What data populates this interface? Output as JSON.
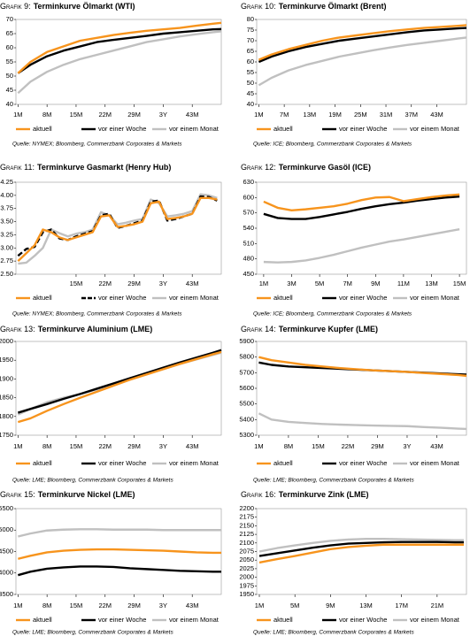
{
  "chart_data": [
    {
      "type": "line",
      "figure_label": "Grafik 9:",
      "title": "Terminkurve Ölmarkt (WTI)",
      "source": "Quelle: NYMEX; Bloomberg, Commerzbank Corporates & Markets",
      "x": [
        1,
        4,
        8,
        12,
        16,
        20,
        24,
        28,
        32,
        36,
        40,
        44,
        48,
        50
      ],
      "xlim": [
        0.5,
        50
      ],
      "xticks": [
        {
          "value": 1,
          "label": "1M"
        },
        {
          "value": 8,
          "label": "8M"
        },
        {
          "value": 15,
          "label": "15M"
        },
        {
          "value": 22,
          "label": "22M"
        },
        {
          "value": 29,
          "label": "29M"
        },
        {
          "value": 36,
          "label": "3Y"
        },
        {
          "value": 43,
          "label": "43M"
        }
      ],
      "ylim": [
        40,
        70
      ],
      "yticks": [
        40,
        45,
        50,
        55,
        60,
        65,
        70
      ],
      "series": [
        {
          "name": "aktuell",
          "color": "#f7941d",
          "values": [
            51,
            55,
            58.5,
            60.5,
            62.5,
            63.5,
            64.5,
            65.3,
            66,
            66.5,
            67,
            67.8,
            68.5,
            68.8
          ]
        },
        {
          "name": "vor einer Woche",
          "color": "#000000",
          "values": [
            51,
            54,
            57,
            59,
            60.5,
            62,
            62.8,
            63.5,
            64.2,
            65,
            65.5,
            66,
            66.5,
            66.6
          ]
        },
        {
          "name": "vor einem Monat",
          "color": "#c0c0c0",
          "values": [
            44,
            48,
            51.5,
            54,
            56,
            57.5,
            59,
            60.5,
            62,
            63,
            64,
            64.8,
            65.5,
            65.8
          ]
        }
      ]
    },
    {
      "type": "line",
      "figure_label": "Grafik 10:",
      "title": "Terminkurve Ölmarkt (Brent)",
      "source": "Quelle: ICE; Bloomberg, Commerzbank Corporates & Markets",
      "x": [
        1,
        4,
        8,
        12,
        16,
        20,
        24,
        28,
        32,
        36,
        40,
        44,
        48,
        50
      ],
      "xlim": [
        0.5,
        50
      ],
      "xticks": [
        {
          "value": 1,
          "label": "1M"
        },
        {
          "value": 7,
          "label": "7M"
        },
        {
          "value": 13,
          "label": "13M"
        },
        {
          "value": 19,
          "label": "19M"
        },
        {
          "value": 25,
          "label": "25M"
        },
        {
          "value": 31,
          "label": "31M"
        },
        {
          "value": 37,
          "label": "37M"
        },
        {
          "value": 43,
          "label": "43M"
        }
      ],
      "ylim": [
        40,
        80
      ],
      "yticks": [
        40,
        45,
        50,
        55,
        60,
        65,
        70,
        75,
        80
      ],
      "series": [
        {
          "name": "aktuell",
          "color": "#f7941d",
          "values": [
            61,
            63.5,
            66,
            68,
            70,
            71.5,
            72.5,
            73.5,
            74.5,
            75.3,
            76,
            76.5,
            77,
            77.3
          ]
        },
        {
          "name": "vor einer Woche",
          "color": "#000000",
          "values": [
            60,
            62.5,
            65,
            67,
            68.5,
            70,
            71,
            72,
            73,
            74,
            74.8,
            75.3,
            75.8,
            76
          ]
        },
        {
          "name": "vor einem Monat",
          "color": "#c0c0c0",
          "values": [
            49,
            52.5,
            56,
            58.5,
            60.5,
            62.5,
            64,
            65.5,
            66.8,
            68,
            69,
            70,
            71,
            71.5
          ]
        }
      ]
    },
    {
      "type": "line",
      "figure_label": "Grafik 11:",
      "title": "Terminkurve Gasmarkt (Henry Hub)",
      "source": "Quelle: NYMEX; Bloomberg, Commerzbank Corporates & Markets",
      "x": [
        1,
        3,
        5,
        7,
        9,
        11,
        13,
        15,
        17,
        19,
        21,
        23,
        25,
        27,
        29,
        31,
        33,
        35,
        37,
        39,
        41,
        43,
        45,
        47,
        49
      ],
      "xlim": [
        0.5,
        50
      ],
      "xticks": [
        {
          "value": 15,
          "label": "15M"
        },
        {
          "value": 22,
          "label": "22M"
        },
        {
          "value": 29,
          "label": "29M"
        },
        {
          "value": 36,
          "label": "3Y"
        },
        {
          "value": 43,
          "label": "43M"
        }
      ],
      "ylim": [
        2.5,
        4.25
      ],
      "yticks": [
        {
          "value": 2.5,
          "label": "2.50"
        },
        2.75,
        {
          "value": 3,
          "label": "3.00"
        },
        3.25,
        {
          "value": 3.5,
          "label": "3.50"
        },
        3.75,
        {
          "value": 4,
          "label": "4.00"
        },
        4.25
      ],
      "series": [
        {
          "name": "aktuell",
          "color": "#f7941d",
          "values": [
            2.75,
            2.9,
            3.05,
            3.35,
            3.3,
            3.2,
            3.15,
            3.2,
            3.25,
            3.3,
            3.6,
            3.62,
            3.4,
            3.42,
            3.45,
            3.5,
            3.85,
            3.88,
            3.55,
            3.57,
            3.6,
            3.65,
            3.95,
            3.95,
            3.92
          ]
        },
        {
          "name": "vor einer Woche",
          "color": "#000000",
          "dashed": true,
          "values": [
            2.85,
            2.98,
            3.02,
            3.3,
            3.35,
            3.18,
            3.15,
            3.22,
            3.27,
            3.32,
            3.62,
            3.65,
            3.38,
            3.42,
            3.47,
            3.52,
            3.88,
            3.9,
            3.52,
            3.55,
            3.6,
            3.65,
            3.98,
            3.97,
            3.9
          ]
        },
        {
          "name": "vor einem Monat",
          "color": "#c0c0c0",
          "values": [
            2.7,
            2.72,
            2.85,
            3.0,
            3.35,
            3.28,
            3.22,
            3.27,
            3.3,
            3.35,
            3.68,
            3.62,
            3.45,
            3.48,
            3.52,
            3.55,
            3.92,
            3.85,
            3.6,
            3.62,
            3.65,
            3.7,
            4.02,
            4.0,
            3.95
          ]
        }
      ]
    },
    {
      "type": "line",
      "figure_label": "Grafik 12:",
      "title": "Terminkurve Gasöl (ICE)",
      "source": "Quelle: ICE; Bloomberg, Commerzbank Corporates & Markets",
      "x": [
        1,
        2,
        3,
        4,
        5,
        6,
        7,
        8,
        9,
        10,
        11,
        12,
        13,
        14,
        15
      ],
      "xlim": [
        0.5,
        15.5
      ],
      "xticks": [
        {
          "value": 1,
          "label": "1M"
        },
        {
          "value": 3,
          "label": "3M"
        },
        {
          "value": 5,
          "label": "5M"
        },
        {
          "value": 7,
          "label": "7M"
        },
        {
          "value": 9,
          "label": "9M"
        },
        {
          "value": 11,
          "label": "11M"
        },
        {
          "value": 13,
          "label": "13M"
        },
        {
          "value": 15,
          "label": "15M"
        }
      ],
      "ylim": [
        450,
        630
      ],
      "yticks": [
        450,
        480,
        510,
        540,
        570,
        600,
        630
      ],
      "series": [
        {
          "name": "aktuell",
          "color": "#f7941d",
          "values": [
            592,
            580,
            575,
            577,
            580,
            583,
            588,
            595,
            600,
            601,
            593,
            597,
            601,
            604,
            606
          ]
        },
        {
          "name": "vor einer Woche",
          "color": "#000000",
          "values": [
            568,
            560,
            558,
            558,
            562,
            567,
            572,
            578,
            583,
            587,
            590,
            594,
            597,
            600,
            602
          ]
        },
        {
          "name": "vor einem Monat",
          "color": "#c0c0c0",
          "values": [
            474,
            473,
            474,
            477,
            482,
            488,
            495,
            502,
            508,
            514,
            518,
            523,
            528,
            533,
            538
          ]
        }
      ]
    },
    {
      "type": "line",
      "figure_label": "Grafik 13:",
      "title": "Terminkurve Aluminium (LME)",
      "source": "Quelle: LME; Bloomberg, Commerzbank Corporates & Markets",
      "x": [
        1,
        4,
        8,
        12,
        16,
        20,
        24,
        28,
        32,
        36,
        40,
        44,
        48,
        50
      ],
      "xlim": [
        0.5,
        50
      ],
      "xticks": [
        {
          "value": 1,
          "label": "1M"
        },
        {
          "value": 8,
          "label": "8M"
        },
        {
          "value": 15,
          "label": "15M"
        },
        {
          "value": 22,
          "label": "22M"
        },
        {
          "value": 29,
          "label": "29M"
        },
        {
          "value": 36,
          "label": "3Y"
        },
        {
          "value": 43,
          "label": "43M"
        }
      ],
      "ylim": [
        1750,
        2000
      ],
      "yticks": [
        1750,
        1800,
        1850,
        1900,
        1950,
        2000
      ],
      "series": [
        {
          "name": "aktuell",
          "color": "#f7941d",
          "values": [
            1785,
            1795,
            1815,
            1833,
            1850,
            1866,
            1882,
            1898,
            1912,
            1926,
            1940,
            1953,
            1966,
            1972
          ]
        },
        {
          "name": "vor einer Woche",
          "color": "#000000",
          "values": [
            1810,
            1820,
            1833,
            1847,
            1860,
            1874,
            1888,
            1902,
            1916,
            1930,
            1944,
            1957,
            1970,
            1977
          ]
        },
        {
          "name": "vor einem Monat",
          "color": "#c0c0c0",
          "values": [
            1805,
            1820,
            1838,
            1850,
            1860,
            1872,
            1885,
            1900,
            1913,
            1926,
            1940,
            1952,
            1964,
            1970
          ]
        }
      ]
    },
    {
      "type": "line",
      "figure_label": "Grafik 14:",
      "title": "Terminkurve Kupfer (LME)",
      "source": "Quelle: LME; Bloomberg, Commerzbank Corporates & Markets",
      "x": [
        1,
        4,
        8,
        12,
        16,
        20,
        24,
        28,
        32,
        36,
        40,
        44,
        48,
        50
      ],
      "xlim": [
        0.5,
        50
      ],
      "xticks": [
        {
          "value": 1,
          "label": "1M"
        },
        {
          "value": 8,
          "label": "8M"
        },
        {
          "value": 15,
          "label": "15M"
        },
        {
          "value": 22,
          "label": "22M"
        },
        {
          "value": 29,
          "label": "29M"
        },
        {
          "value": 36,
          "label": "3Y"
        },
        {
          "value": 43,
          "label": "43M"
        }
      ],
      "ylim": [
        5300,
        5900
      ],
      "yticks": [
        5300,
        5400,
        5500,
        5600,
        5700,
        5800,
        5900
      ],
      "series": [
        {
          "name": "aktuell",
          "color": "#f7941d",
          "values": [
            5800,
            5780,
            5765,
            5750,
            5740,
            5730,
            5722,
            5715,
            5710,
            5705,
            5698,
            5692,
            5685,
            5680
          ]
        },
        {
          "name": "vor einer Woche",
          "color": "#000000",
          "values": [
            5765,
            5750,
            5740,
            5735,
            5730,
            5725,
            5720,
            5715,
            5710,
            5705,
            5700,
            5695,
            5690,
            5688
          ]
        },
        {
          "name": "vor einem Monat",
          "color": "#c0c0c0",
          "values": [
            5440,
            5400,
            5385,
            5378,
            5372,
            5368,
            5365,
            5362,
            5360,
            5358,
            5352,
            5348,
            5342,
            5340
          ]
        }
      ]
    },
    {
      "type": "line",
      "figure_label": "Grafik 15:",
      "title": "Terminkurve Nickel (LME)",
      "source": "Quelle: LME; Bloomberg, Commerzbank Corporates & Markets",
      "x": [
        1,
        4,
        8,
        12,
        16,
        20,
        24,
        28,
        32,
        36,
        40,
        44,
        48,
        50
      ],
      "xlim": [
        0.5,
        50
      ],
      "xticks": [
        {
          "value": 1,
          "label": "1M"
        },
        {
          "value": 8,
          "label": "8M"
        },
        {
          "value": 15,
          "label": "15M"
        },
        {
          "value": 22,
          "label": "22M"
        },
        {
          "value": 29,
          "label": "29M"
        },
        {
          "value": 36,
          "label": "3Y"
        },
        {
          "value": 43,
          "label": "43M"
        }
      ],
      "ylim": [
        13500,
        15500
      ],
      "yticks": [
        13500,
        14000,
        14500,
        15000,
        15500
      ],
      "series": [
        {
          "name": "aktuell",
          "color": "#f7941d",
          "values": [
            14330,
            14400,
            14480,
            14520,
            14540,
            14550,
            14550,
            14540,
            14530,
            14520,
            14500,
            14480,
            14470,
            14470
          ]
        },
        {
          "name": "vor einer Woche",
          "color": "#000000",
          "values": [
            13950,
            14030,
            14100,
            14130,
            14150,
            14150,
            14140,
            14110,
            14090,
            14070,
            14050,
            14040,
            14030,
            14030
          ]
        },
        {
          "name": "vor einem Monat",
          "color": "#c0c0c0",
          "values": [
            14850,
            14920,
            14990,
            15010,
            15020,
            15020,
            15010,
            15010,
            15010,
            15000,
            15000,
            15000,
            15000,
            15000
          ]
        }
      ]
    },
    {
      "type": "line",
      "figure_label": "Grafik 16:",
      "title": "Terminkurve Zink (LME)",
      "source": "Quelle: LME; Bloomberg, Commerzbank Corporates & Markets",
      "x": [
        1,
        3,
        5,
        7,
        9,
        11,
        13,
        15,
        17,
        19,
        21,
        23,
        24
      ],
      "xlim": [
        0.7,
        24.3
      ],
      "xticks": [
        {
          "value": 1,
          "label": "1M"
        },
        {
          "value": 5,
          "label": "5M"
        },
        {
          "value": 9,
          "label": "9M"
        },
        {
          "value": 13,
          "label": "13M"
        },
        {
          "value": 17,
          "label": "17M"
        },
        {
          "value": 21,
          "label": "21M"
        }
      ],
      "ylim": [
        1950,
        2200
      ],
      "yticks": [
        1950,
        1975,
        2000,
        2025,
        2050,
        2075,
        2100,
        2125,
        2150,
        2175,
        2200
      ],
      "series": [
        {
          "name": "aktuell",
          "color": "#f7941d",
          "values": [
            2043,
            2053,
            2062,
            2072,
            2082,
            2088,
            2092,
            2095,
            2095,
            2095,
            2095,
            2095,
            2095
          ]
        },
        {
          "name": "vor einer Woche",
          "color": "#000000",
          "values": [
            2062,
            2070,
            2078,
            2086,
            2093,
            2098,
            2100,
            2102,
            2103,
            2103,
            2103,
            2102,
            2102
          ]
        },
        {
          "name": "vor einem Monat",
          "color": "#c0c0c0",
          "values": [
            2075,
            2085,
            2093,
            2100,
            2106,
            2110,
            2112,
            2112,
            2111,
            2110,
            2109,
            2108,
            2108
          ]
        }
      ]
    }
  ]
}
